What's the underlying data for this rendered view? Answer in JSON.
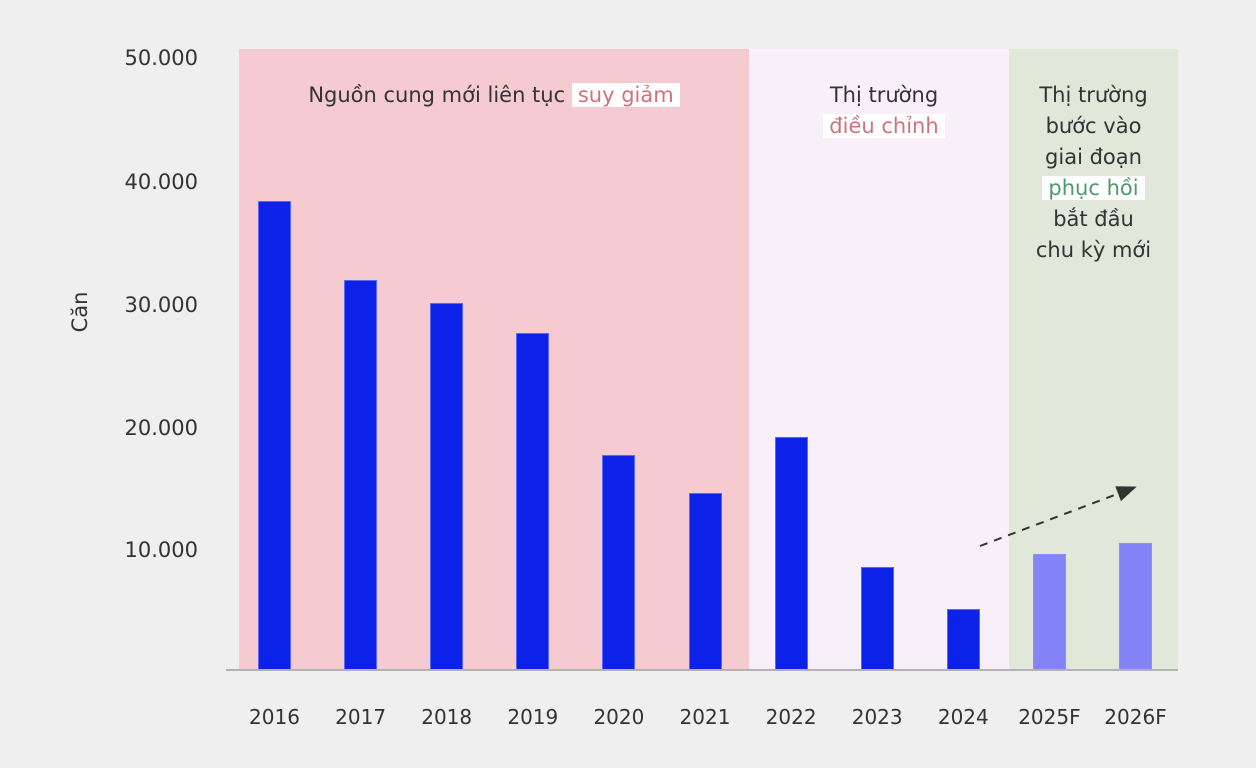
{
  "chart_data": {
    "type": "bar",
    "title": "",
    "xlabel": "",
    "ylabel": "Căn",
    "ylim": [
      0,
      50000
    ],
    "yticks": [
      "10.000",
      "20.000",
      "30.000",
      "40.000",
      "50.000"
    ],
    "grid": false,
    "categories": [
      "2016",
      "2017",
      "2018",
      "2019",
      "2020",
      "2021",
      "2022",
      "2023",
      "2024",
      "2025F",
      "2026F"
    ],
    "values": [
      38300,
      31900,
      30000,
      27500,
      17600,
      14500,
      19000,
      8400,
      5000,
      9500,
      10400
    ],
    "series_type": [
      "actual",
      "actual",
      "actual",
      "actual",
      "actual",
      "actual",
      "actual",
      "actual",
      "actual",
      "forecast",
      "forecast"
    ],
    "colors": {
      "actual": "#0c22e8",
      "forecast": "#8484f8"
    },
    "regions": [
      {
        "name": "decline",
        "from": "2016",
        "to": "2021",
        "color": "#f6cad1",
        "label_pre": "Nguồn cung mới liên tục",
        "label_highlight": "suy giảm",
        "label_post": []
      },
      {
        "name": "adjustment",
        "from": "2022",
        "to": "2024",
        "color": "#f7f0f9",
        "label_pre": "Thị trường",
        "label_highlight": "điều chỉnh",
        "label_post": []
      },
      {
        "name": "recovery",
        "from": "2025F",
        "to": "2026F",
        "color": "#e1e8da",
        "label_pre_lines": [
          "Thị trường",
          "bước vào",
          "giai đoạn"
        ],
        "label_highlight": "phục hồi",
        "label_post": [
          "bắt đầu",
          "chu kỳ mới"
        ]
      }
    ],
    "annotations": [
      {
        "type": "dashed-arrow",
        "from_category": "2024",
        "to_category": "2026F",
        "direction": "up"
      }
    ],
    "legend": null
  },
  "axis": {
    "ylabel": "Căn",
    "yticks": [
      {
        "label": "50.000",
        "value": 50000
      },
      {
        "label": "40.000",
        "value": 40000
      },
      {
        "label": "30.000",
        "value": 30000
      },
      {
        "label": "20.000",
        "value": 20000
      },
      {
        "label": "10.000",
        "value": 10000
      }
    ]
  },
  "annotations": {
    "decline": {
      "text": "Nguồn cung mới liên tục",
      "highlight": "suy giảm"
    },
    "adjustment": {
      "line1": "Thị trường",
      "highlight": "điều chỉnh"
    },
    "recovery": {
      "line1": "Thị trường",
      "line2": "bước vào",
      "line3": "giai đoạn",
      "highlight": "phục hồi",
      "line5": "bắt đầu",
      "line6": "chu kỳ mới"
    }
  }
}
